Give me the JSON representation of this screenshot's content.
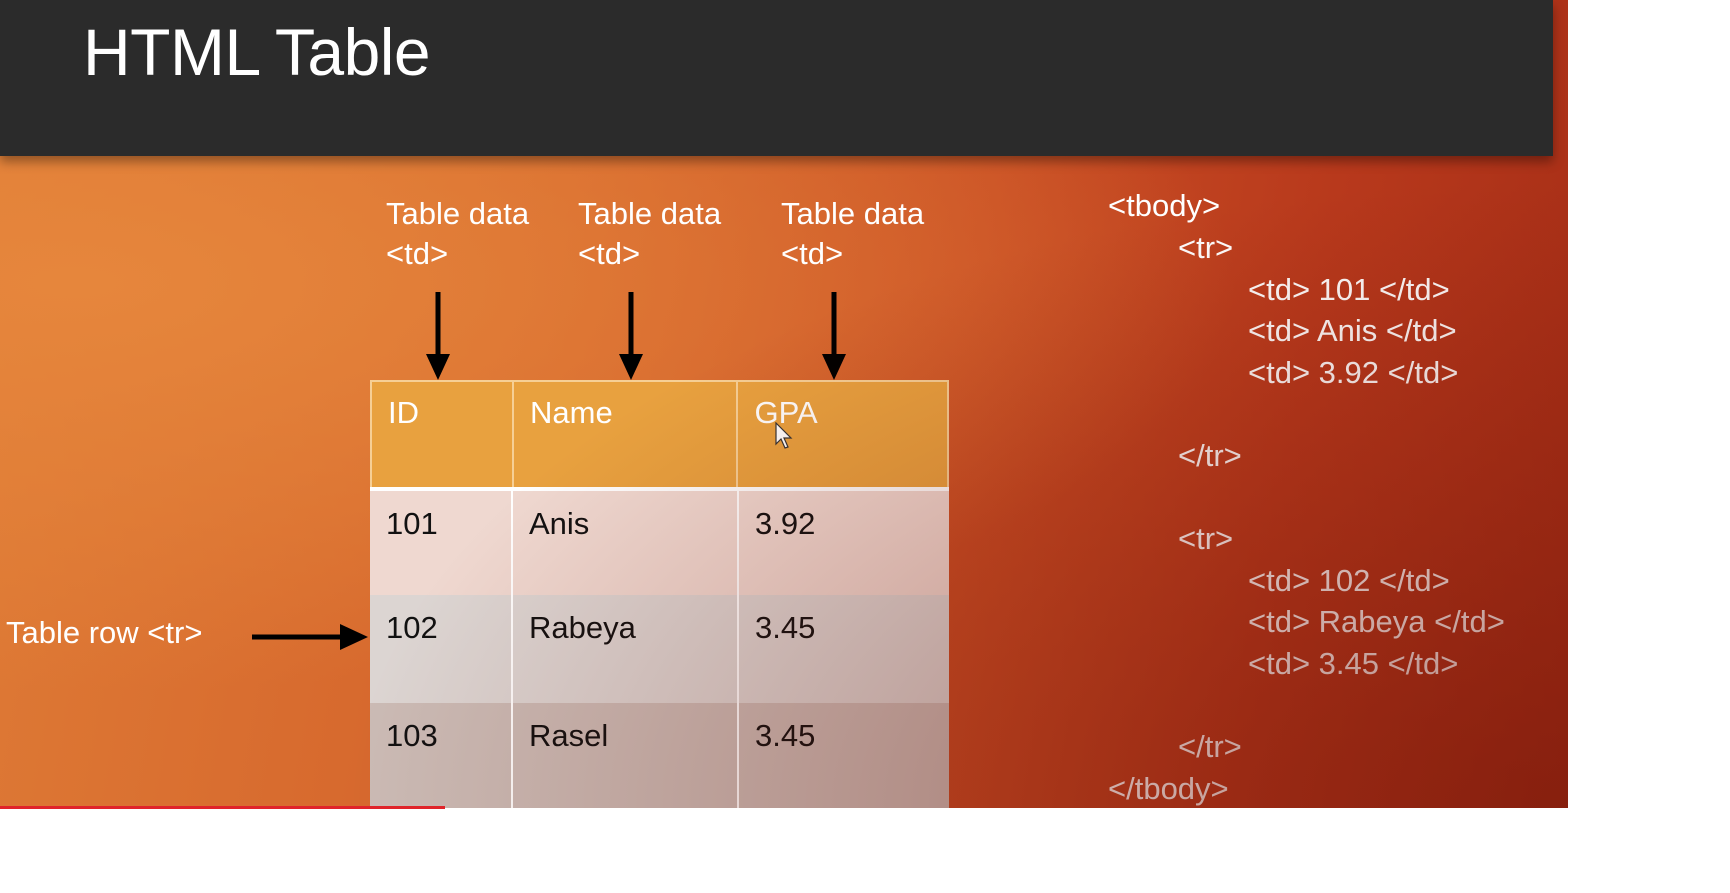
{
  "slide": {
    "title": "HTML Table"
  },
  "column_annotations": [
    {
      "line1": "Table data",
      "line2": "<td>"
    },
    {
      "line1": "Table data",
      "line2": "<td>"
    },
    {
      "line1": "Table data",
      "line2": "<td>"
    }
  ],
  "row_annotation": "Table row <tr>",
  "table": {
    "headers": [
      "ID",
      "Name",
      "GPA"
    ],
    "rows": [
      [
        "101",
        "Anis",
        "3.92"
      ],
      [
        "102",
        "Rabeya",
        "3.45"
      ],
      [
        "103",
        "Rasel",
        "3.45"
      ]
    ]
  },
  "code_lines": [
    "<tbody>",
    "<tr>",
    "<td> 101 </td>",
    "<td> Anis </td>",
    "<td> 3.92 </td>",
    "</tr>",
    "<tr>",
    "<td> 102 </td>",
    "<td> Rabeya </td>",
    "<td> 3.45 </td>",
    "</tr>",
    "</tbody>"
  ],
  "colors": {
    "title_bar": "#2b2b2b",
    "header_row": "#e8a13f",
    "slide_orange": "#d5652c",
    "progress_red": "#e0242a"
  },
  "icons": {
    "pointer": "mouse-pointer-icon",
    "arrows": "arrow-icon"
  }
}
